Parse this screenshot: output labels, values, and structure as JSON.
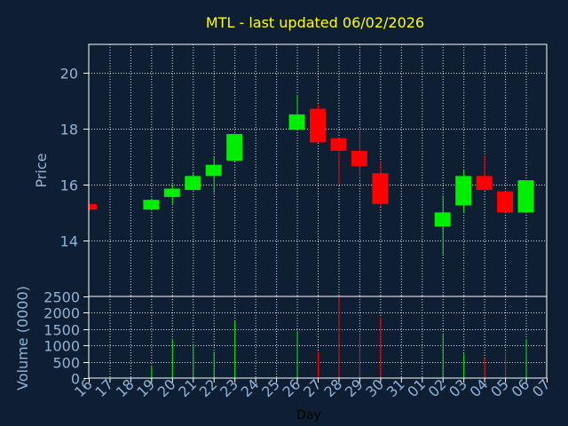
{
  "chart_data": {
    "type": "candlestick",
    "title": "MTL - last updated 06/02/2026",
    "xlabel": "Day",
    "ylabel_price": "Price",
    "ylabel_volume": "Volume (0000)",
    "grid": true,
    "x_ticks": [
      "16",
      "17",
      "18",
      "19",
      "20",
      "21",
      "22",
      "23",
      "24",
      "25",
      "26",
      "27",
      "28",
      "29",
      "30",
      "31",
      "01",
      "02",
      "03",
      "04",
      "05",
      "06",
      "07"
    ],
    "price_ylim": [
      12.0,
      21.0
    ],
    "price_ticks": [
      14,
      16,
      18,
      20
    ],
    "volume_ylim": [
      0,
      2500
    ],
    "volume_ticks": [
      0,
      500,
      1000,
      1500,
      2000,
      2500
    ],
    "candles": [
      {
        "day": "16",
        "open": 15.3,
        "high": 15.3,
        "low": 15.05,
        "close": 15.1,
        "volume": 0
      },
      {
        "day": "19",
        "open": 15.1,
        "high": 15.5,
        "low": 15.1,
        "close": 15.45,
        "volume": 350
      },
      {
        "day": "20",
        "open": 15.55,
        "high": 16.0,
        "low": 15.3,
        "close": 15.85,
        "volume": 1200
      },
      {
        "day": "21",
        "open": 15.8,
        "high": 16.4,
        "low": 15.8,
        "close": 16.3,
        "volume": 1050
      },
      {
        "day": "22",
        "open": 16.3,
        "high": 17.0,
        "low": 15.7,
        "close": 16.7,
        "volume": 800
      },
      {
        "day": "23",
        "open": 16.85,
        "high": 17.8,
        "low": 16.8,
        "close": 17.8,
        "volume": 1750
      },
      {
        "day": "26",
        "open": 17.95,
        "high": 19.2,
        "low": 17.95,
        "close": 18.5,
        "volume": 1450
      },
      {
        "day": "27",
        "open": 18.7,
        "high": 18.85,
        "low": 17.5,
        "close": 17.5,
        "volume": 800
      },
      {
        "day": "28",
        "open": 17.65,
        "high": 17.65,
        "low": 16.0,
        "close": 17.2,
        "volume": 2500
      },
      {
        "day": "29",
        "open": 17.2,
        "high": 18.0,
        "low": 16.3,
        "close": 16.65,
        "volume": 1350
      },
      {
        "day": "30",
        "open": 16.4,
        "high": 16.8,
        "low": 15.2,
        "close": 15.3,
        "volume": 1850
      },
      {
        "day": "02",
        "open": 14.5,
        "high": 15.6,
        "low": 13.5,
        "close": 15.0,
        "volume": 1350
      },
      {
        "day": "03",
        "open": 15.25,
        "high": 16.5,
        "low": 15.0,
        "close": 16.3,
        "volume": 750
      },
      {
        "day": "04",
        "open": 16.3,
        "high": 17.0,
        "low": 15.8,
        "close": 15.8,
        "volume": 600
      },
      {
        "day": "05",
        "open": 15.75,
        "high": 15.75,
        "low": 15.0,
        "close": 15.0,
        "volume": 800
      },
      {
        "day": "06",
        "open": 15.0,
        "high": 16.15,
        "low": 15.0,
        "close": 16.15,
        "volume": 1200
      }
    ]
  },
  "colors": {
    "background": "#0f1f33",
    "title": "#ffff00",
    "axis_text": "#8fb4d8",
    "grid": "#ffffff",
    "up": "#00ee00",
    "down": "#ff0000"
  }
}
